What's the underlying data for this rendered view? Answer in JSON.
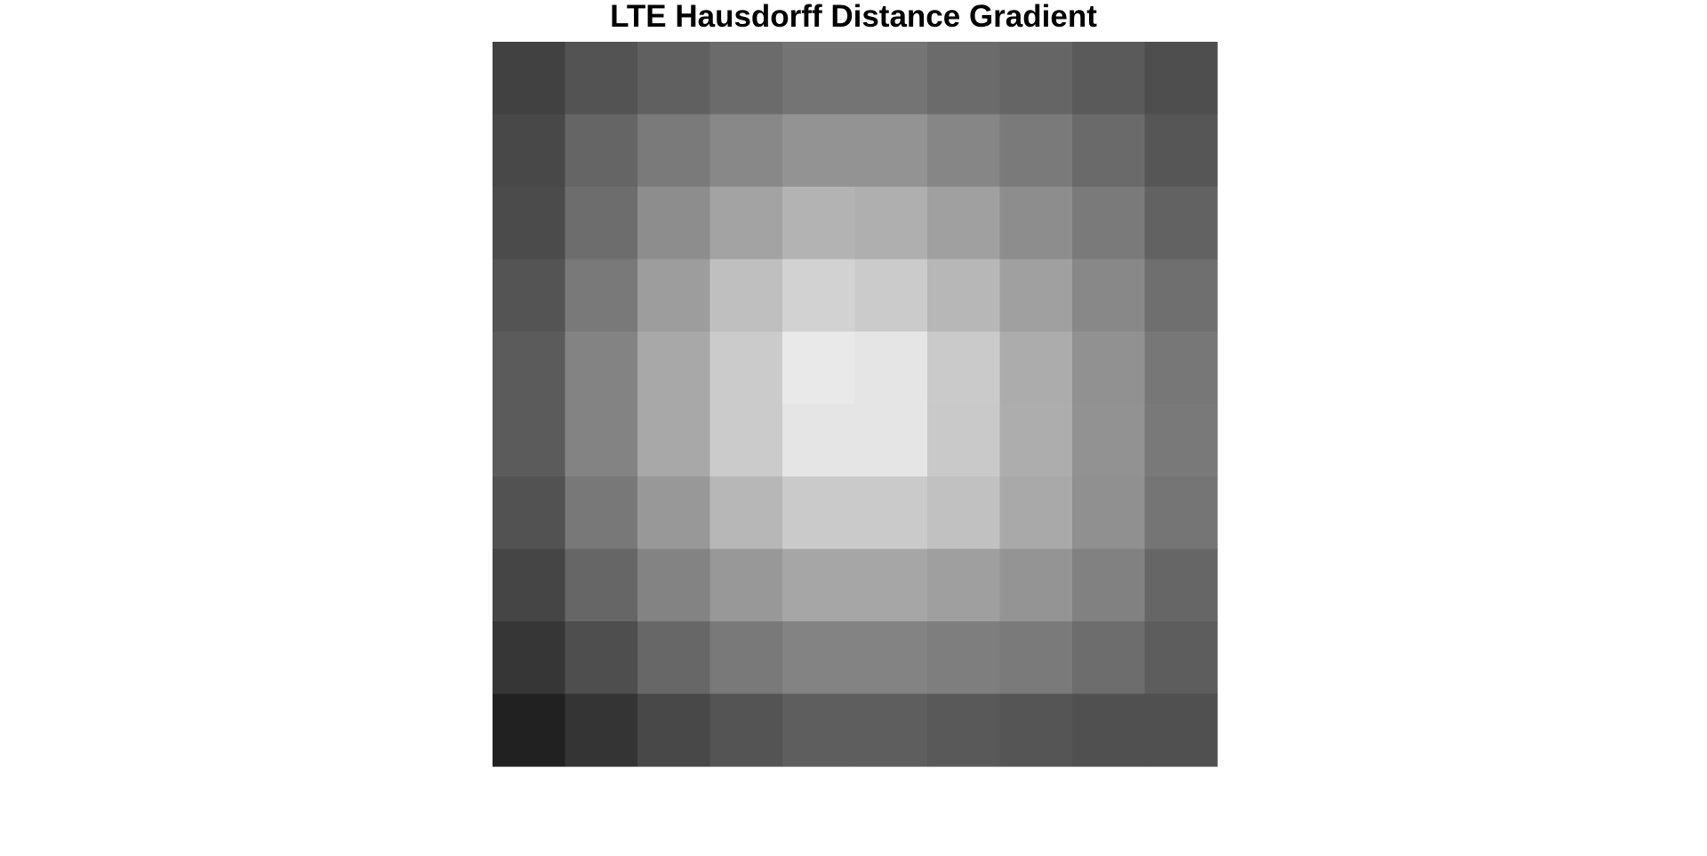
{
  "chart_data": {
    "type": "heatmap",
    "title": "LTE Hausdorff Distance Gradient",
    "xlabel": "",
    "ylabel": "",
    "colormap": "gray",
    "grid": false,
    "axis_visible": false,
    "rows": 10,
    "cols": 10,
    "values": [
      [
        65,
        83,
        96,
        107,
        116,
        116,
        107,
        101,
        90,
        78
      ],
      [
        72,
        101,
        122,
        136,
        147,
        147,
        134,
        122,
        106,
        86
      ],
      [
        75,
        109,
        141,
        163,
        179,
        175,
        160,
        141,
        122,
        98
      ],
      [
        84,
        121,
        157,
        191,
        210,
        203,
        183,
        160,
        136,
        111
      ],
      [
        91,
        131,
        168,
        203,
        233,
        229,
        202,
        172,
        145,
        119
      ],
      [
        91,
        131,
        168,
        203,
        229,
        229,
        201,
        173,
        146,
        121
      ],
      [
        82,
        120,
        152,
        183,
        202,
        202,
        193,
        169,
        144,
        117
      ],
      [
        69,
        102,
        131,
        152,
        166,
        166,
        159,
        148,
        129,
        102
      ],
      [
        54,
        78,
        103,
        121,
        131,
        131,
        126,
        122,
        109,
        93
      ],
      [
        33,
        52,
        72,
        84,
        94,
        94,
        89,
        85,
        80,
        80
      ]
    ]
  }
}
